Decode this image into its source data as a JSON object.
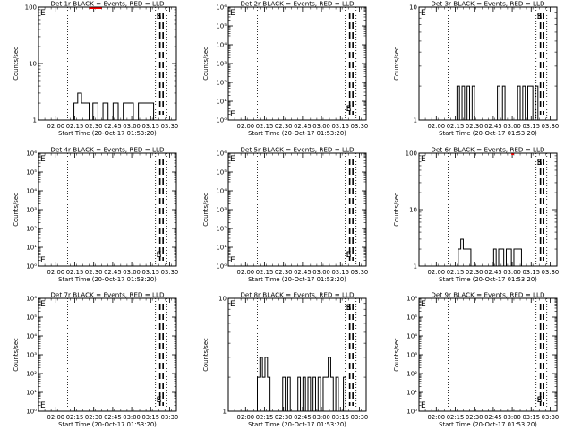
{
  "x_tick_labels": [
    "02:00",
    "02:15",
    "02:30",
    "02:45",
    "03:00",
    "03:15",
    "03:30"
  ],
  "xlabel": "Start Time (20-Oct-17 01:53:20)",
  "ylabel": "Counts/sec",
  "marker_labels": {
    "end": "E",
    "start": "S"
  },
  "colors": {
    "events": "#000000",
    "lld": "#ff0000"
  },
  "chart_data": [
    {
      "type": "line",
      "detector": "1r",
      "title": "Det 1r BLACK = Events, RED = LLD",
      "yscale": "log",
      "ylim": [
        1,
        100
      ],
      "y_tick_labels": [
        "1",
        "10",
        "100"
      ],
      "xlim_min": [
        -7,
        102
      ],
      "dotted_lines_min": [
        16,
        85.5,
        94
      ],
      "dashed_lines_min": [
        89,
        91.5
      ],
      "events": {
        "x_min": [
          21,
          24,
          27,
          30,
          33,
          36,
          40,
          44,
          48,
          52,
          56,
          60,
          64,
          68,
          72,
          76,
          80,
          84,
          88
        ],
        "y": [
          2,
          3,
          2,
          2,
          1,
          2,
          1,
          2,
          1,
          2,
          1,
          2,
          2,
          1,
          2,
          2,
          2,
          1,
          1
        ]
      },
      "lld": {
        "x_min": [
          33,
          35,
          37,
          39,
          41,
          43
        ],
        "y": [
          100,
          100,
          100,
          100,
          100,
          100
        ]
      }
    },
    {
      "type": "line",
      "detector": "2r",
      "title": "Det 2r BLACK = Events, RED = LLD",
      "yscale": "log",
      "ylim": [
        1,
        1000000
      ],
      "y_tick_labels": [
        "10⁰",
        "10¹",
        "10²",
        "10³",
        "10⁴",
        "10⁵",
        "10⁶"
      ],
      "xlim_min": [
        -7,
        102
      ],
      "dotted_lines_min": [
        16,
        85.5,
        94
      ],
      "dashed_lines_min": [
        89,
        91.5
      ],
      "events": {
        "x_min": [],
        "y": []
      },
      "lld": {
        "x_min": [],
        "y": []
      }
    },
    {
      "type": "line",
      "detector": "3r",
      "title": "Det 3r BLACK = Events, RED = LLD",
      "yscale": "log",
      "ylim": [
        1,
        10
      ],
      "y_tick_labels": [
        "1",
        "10"
      ],
      "xlim_min": [
        -7,
        102
      ],
      "dotted_lines_min": [
        16,
        85.5,
        94
      ],
      "dashed_lines_min": [
        89,
        91.5
      ],
      "events": {
        "x_min": [
          21,
          23,
          25,
          27,
          29,
          31,
          33,
          35,
          37,
          39,
          41,
          43,
          45,
          47,
          49,
          51,
          53,
          55,
          57,
          59,
          61,
          63,
          65,
          67,
          69,
          71,
          73,
          75,
          77,
          79,
          81,
          83,
          85
        ],
        "y": [
          1,
          2,
          1,
          2,
          1,
          2,
          1,
          2,
          1,
          1,
          1,
          1,
          1,
          1,
          1,
          1,
          1,
          2,
          1,
          2,
          1,
          1,
          1,
          1,
          1,
          2,
          1,
          2,
          1,
          2,
          2,
          1,
          2
        ]
      },
      "lld": {
        "x_min": [],
        "y": []
      }
    },
    {
      "type": "line",
      "detector": "4r",
      "title": "Det 4r BLACK = Events, RED = LLD",
      "yscale": "log",
      "ylim": [
        1,
        1000000
      ],
      "y_tick_labels": [
        "10⁰",
        "10¹",
        "10²",
        "10³",
        "10⁴",
        "10⁵",
        "10⁶"
      ],
      "xlim_min": [
        -7,
        102
      ],
      "dotted_lines_min": [
        16,
        85.5,
        94
      ],
      "dashed_lines_min": [
        89,
        91.5
      ],
      "events": {
        "x_min": [],
        "y": []
      },
      "lld": {
        "x_min": [],
        "y": []
      }
    },
    {
      "type": "line",
      "detector": "5r",
      "title": "Det 5r BLACK = Events, RED = LLD",
      "yscale": "log",
      "ylim": [
        1,
        1000000
      ],
      "y_tick_labels": [
        "10⁰",
        "10¹",
        "10²",
        "10³",
        "10⁴",
        "10⁵",
        "10⁶"
      ],
      "xlim_min": [
        -7,
        102
      ],
      "dotted_lines_min": [
        16,
        85.5,
        94
      ],
      "dashed_lines_min": [
        89,
        91.5
      ],
      "events": {
        "x_min": [],
        "y": []
      },
      "lld": {
        "x_min": [],
        "y": []
      }
    },
    {
      "type": "line",
      "detector": "6r",
      "title": "Det 6r BLACK = Events, RED = LLD",
      "yscale": "log",
      "ylim": [
        1,
        100
      ],
      "y_tick_labels": [
        "1",
        "10",
        "100"
      ],
      "xlim_min": [
        -7,
        102
      ],
      "dotted_lines_min": [
        16,
        85.5,
        94
      ],
      "dashed_lines_min": [
        89,
        91.5
      ],
      "events": {
        "x_min": [
          22,
          24,
          26,
          28,
          30,
          32,
          34,
          36,
          38,
          40,
          42,
          44,
          46,
          48,
          50,
          52,
          54,
          56,
          58,
          60,
          62,
          64,
          66,
          68,
          70,
          72,
          74,
          76,
          78,
          80,
          82,
          84,
          86
        ],
        "y": [
          1,
          2,
          3,
          2,
          2,
          2,
          1,
          1,
          1,
          1,
          1,
          1,
          1,
          1,
          1,
          2,
          1,
          2,
          2,
          1,
          2,
          2,
          1,
          2,
          2,
          2,
          1,
          1,
          1,
          1,
          1,
          1,
          1
        ]
      },
      "lld": {
        "x_min": [
          66,
          68
        ],
        "y": [
          100,
          100
        ]
      }
    },
    {
      "type": "line",
      "detector": "7r",
      "title": "Det 7r BLACK = Events, RED = LLD",
      "yscale": "log",
      "ylim": [
        1,
        1000000
      ],
      "y_tick_labels": [
        "10⁰",
        "10¹",
        "10²",
        "10³",
        "10⁴",
        "10⁵",
        "10⁶"
      ],
      "xlim_min": [
        -7,
        102
      ],
      "dotted_lines_min": [
        16,
        85.5,
        94
      ],
      "dashed_lines_min": [
        89,
        91.5
      ],
      "events": {
        "x_min": [],
        "y": []
      },
      "lld": {
        "x_min": [],
        "y": []
      }
    },
    {
      "type": "line",
      "detector": "8r",
      "title": "Det 8r BLACK = Events, RED = LLD",
      "yscale": "log",
      "ylim": [
        1,
        10
      ],
      "y_tick_labels": [
        "1",
        "10"
      ],
      "xlim_min": [
        -7,
        102
      ],
      "dotted_lines_min": [
        16,
        85.5,
        94
      ],
      "dashed_lines_min": [
        89,
        91.5
      ],
      "events": {
        "x_min": [
          14,
          16,
          18,
          20,
          22,
          24,
          26,
          28,
          30,
          32,
          34,
          36,
          38,
          40,
          42,
          44,
          46,
          48,
          50,
          52,
          54,
          56,
          58,
          60,
          62,
          64,
          66,
          68,
          70,
          72,
          74,
          76,
          78,
          80,
          82,
          84,
          86
        ],
        "y": [
          1,
          2,
          3,
          2,
          3,
          2,
          1,
          1,
          1,
          1,
          1,
          2,
          1,
          2,
          1,
          1,
          1,
          2,
          1,
          2,
          1,
          2,
          1,
          2,
          1,
          2,
          1,
          2,
          2,
          3,
          2,
          1,
          2,
          1,
          1,
          2,
          1
        ]
      },
      "lld": {
        "x_min": [],
        "y": []
      }
    },
    {
      "type": "line",
      "detector": "9r",
      "title": "Det 9r BLACK = Events, RED = LLD",
      "yscale": "log",
      "ylim": [
        1,
        1000000
      ],
      "y_tick_labels": [
        "10⁰",
        "10¹",
        "10²",
        "10³",
        "10⁴",
        "10⁵",
        "10⁶"
      ],
      "xlim_min": [
        -7,
        102
      ],
      "dotted_lines_min": [
        16,
        85.5,
        94
      ],
      "dashed_lines_min": [
        89,
        91.5
      ],
      "events": {
        "x_min": [],
        "y": []
      },
      "lld": {
        "x_min": [],
        "y": []
      }
    }
  ]
}
